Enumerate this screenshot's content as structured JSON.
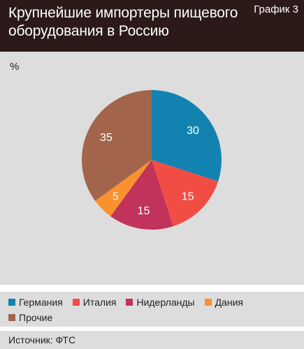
{
  "header": {
    "title": "Крупнейшие импортеры пищевого оборудования в Россию",
    "graph_label": "График 3"
  },
  "unit": "%",
  "chart_data": {
    "type": "pie",
    "title": "Крупнейшие импортеры пищевого оборудования в Россию",
    "unit": "%",
    "slices": [
      {
        "label": "Германия",
        "value": 30,
        "color": "#1283b1"
      },
      {
        "label": "Италия",
        "value": 15,
        "color": "#f24d45"
      },
      {
        "label": "Нидерланды",
        "value": 15,
        "color": "#c1335a"
      },
      {
        "label": "Дания",
        "value": 5,
        "color": "#f9912f"
      },
      {
        "label": "Прочие",
        "value": 35,
        "color": "#a2654c"
      }
    ],
    "start": "top, clockwise",
    "legend_position": "bottom"
  },
  "legend": {
    "row1": [
      "Германия",
      "Италия",
      "Нидерланды",
      "Дания"
    ],
    "row2": [
      "Прочие"
    ]
  },
  "source": "Источник: ФТС"
}
